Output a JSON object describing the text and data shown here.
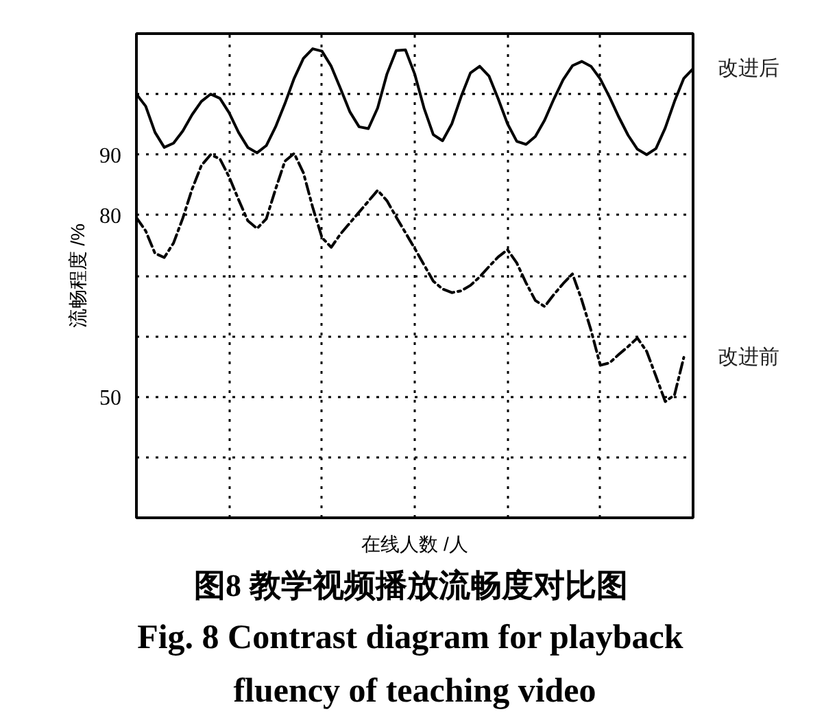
{
  "chart_data": {
    "type": "line",
    "title": "图8  教学视频播放流畅度对比图",
    "subtitle": "Fig. 8  Contrast diagram for playback fluency of teaching video",
    "xlabel": "在线人数 /人",
    "ylabel": "流畅程度 /%",
    "categories": [
      null,
      null,
      null,
      null,
      null,
      null,
      null,
      null,
      null,
      null,
      null,
      null,
      null,
      null,
      null,
      null,
      null,
      null,
      null,
      null,
      null,
      null,
      null,
      null,
      null,
      null,
      null,
      null,
      null,
      null,
      null,
      null,
      null,
      null,
      null,
      null,
      null,
      null,
      null,
      null,
      null,
      null,
      null,
      null,
      null,
      null,
      null,
      null,
      null,
      null,
      null,
      null,
      null,
      null,
      null,
      null,
      null,
      null,
      null,
      null,
      null
    ],
    "ylim": [
      30,
      110
    ],
    "yticks": [
      {
        "value": 40,
        "label": null
      },
      50,
      {
        "value": 60,
        "label": null
      },
      {
        "value": 70,
        "label": null
      },
      80,
      90,
      {
        "value": 100,
        "label": null
      }
    ],
    "grid": true,
    "series": [
      {
        "name": "改进后",
        "color": "#000000",
        "line_style": "solid",
        "values": [
          100.0,
          98.0,
          93.7,
          91.2,
          91.9,
          93.9,
          96.6,
          98.8,
          100.0,
          99.3,
          96.9,
          93.7,
          91.2,
          90.3,
          91.5,
          94.6,
          98.4,
          102.6,
          105.9,
          107.5,
          107.1,
          104.6,
          100.9,
          97.1,
          94.6,
          94.3,
          97.7,
          103.3,
          107.2,
          107.3,
          103.3,
          97.7,
          93.3,
          92.3,
          95.1,
          99.6,
          103.5,
          104.6,
          103.0,
          99.2,
          95.1,
          92.2,
          91.7,
          93.0,
          95.7,
          99.2,
          102.4,
          104.7,
          105.4,
          104.6,
          102.5,
          99.5,
          96.2,
          93.2,
          90.9,
          90.0,
          91.0,
          94.4,
          98.8,
          102.6,
          104.2
        ]
      },
      {
        "name": "改进前",
        "color": "#000000",
        "line_style": "dashdot",
        "values": [
          79.6,
          77.4,
          73.7,
          73.0,
          75.4,
          79.5,
          84.3,
          88.2,
          90.0,
          89.3,
          86.3,
          82.6,
          79.1,
          77.8,
          79.4,
          84.3,
          88.9,
          90.2,
          87.0,
          81.3,
          76.3,
          74.7,
          76.9,
          78.7,
          80.5,
          82.3,
          84.1,
          82.4,
          79.7,
          77.1,
          74.5,
          71.8,
          69.1,
          67.8,
          67.2,
          67.5,
          68.4,
          69.8,
          71.5,
          73.1,
          74.3,
          72.1,
          68.8,
          65.9,
          64.9,
          66.9,
          68.7,
          70.3,
          66.0,
          61.0,
          55.2,
          55.6,
          57.0,
          58.3,
          59.7,
          57.5,
          53.4,
          49.2,
          50.3,
          56.5,
          null
        ]
      }
    ]
  }
}
